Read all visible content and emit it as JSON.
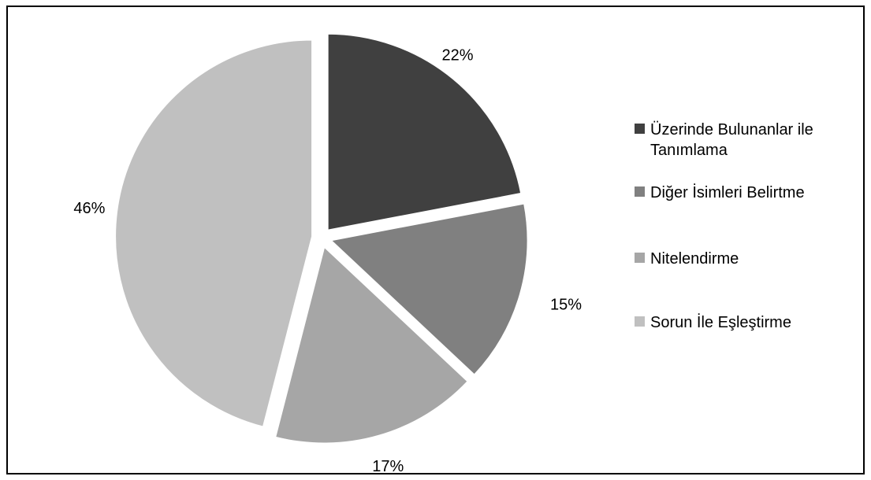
{
  "chart_data": {
    "type": "pie",
    "title": "",
    "start_angle_deg": 0,
    "direction": "clockwise",
    "slices": [
      {
        "label": "Üzerinde Bulunanlar ile Tanımlama",
        "value": 22,
        "display": "22%",
        "color": "#404040",
        "exploded": true
      },
      {
        "label": "Diğer İsimleri Belirtme",
        "value": 15,
        "display": "15%",
        "color": "#808080",
        "exploded": true
      },
      {
        "label": "Nitelendirme",
        "value": 17,
        "display": "17%",
        "color": "#a6a6a6",
        "exploded": true
      },
      {
        "label": "Sorun İle Eşleştirme",
        "value": 46,
        "display": "46%",
        "color": "#c0c0c0",
        "exploded": true
      }
    ],
    "legend_position": "right"
  }
}
